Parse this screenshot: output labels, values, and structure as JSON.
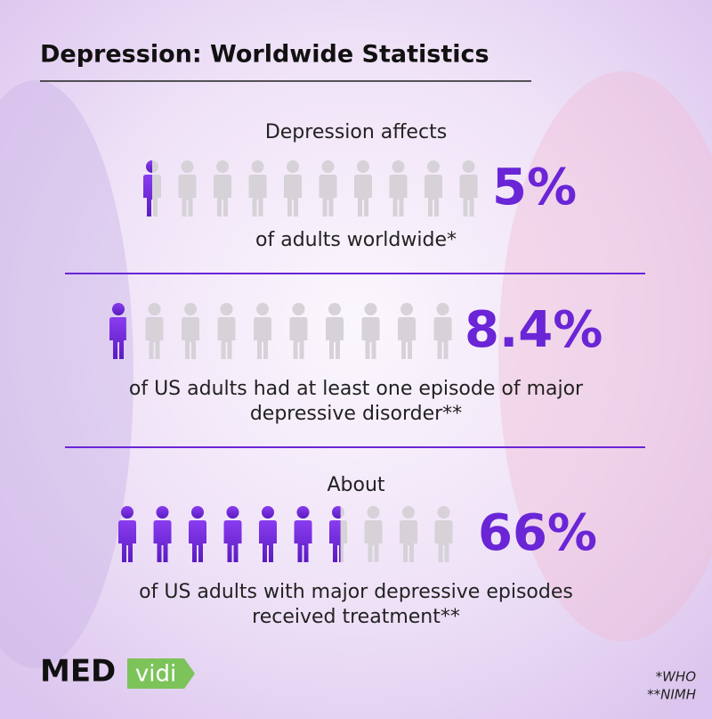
{
  "header": {
    "title": "Depression: Worldwide Statistics"
  },
  "sections": [
    {
      "intro": "Depression affects",
      "value": 5,
      "value_label": "5%",
      "description": [
        "of adults worldwide*"
      ]
    },
    {
      "value": 8.4,
      "value_label": "8.4%",
      "description": [
        "of US adults had at least one episode of major",
        "depressive disorder**"
      ]
    },
    {
      "intro": "About",
      "value": 66,
      "value_label": "66%",
      "description": [
        "of US adults with major depressive episodes",
        "received treatment**"
      ]
    }
  ],
  "logo": {
    "bold": "MED",
    "tag": "vidi"
  },
  "footnotes": [
    "*WHO",
    "**NIMH"
  ]
}
